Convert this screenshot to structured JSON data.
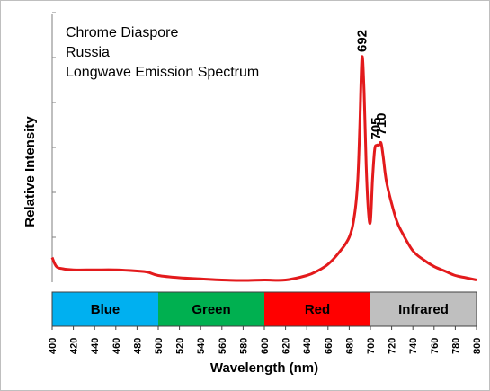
{
  "chart_data": {
    "type": "line",
    "annotations": [
      "Chrome Diaspore",
      "Russia",
      "Longwave Emission Spectrum"
    ],
    "xlabel": "Wavelength (nm)",
    "ylabel": "Relative Intensity",
    "xlim": [
      400,
      800
    ],
    "ylim": [
      0,
      100
    ],
    "x_ticks": [
      "400",
      "420",
      "440",
      "460",
      "480",
      "500",
      "520",
      "540",
      "560",
      "580",
      "600",
      "620",
      "640",
      "660",
      "680",
      "700",
      "720",
      "740",
      "760",
      "780",
      "800"
    ],
    "y_gridlines": false,
    "peak_labels": [
      {
        "text": "692",
        "x": 692,
        "y": 100
      },
      {
        "text": "705",
        "x": 705,
        "y": 61
      },
      {
        "text": "710",
        "x": 710,
        "y": 63
      }
    ],
    "color_bands": [
      {
        "label": "Blue",
        "from": 400,
        "to": 500,
        "color": "#00b0f0"
      },
      {
        "label": "Green",
        "from": 500,
        "to": 600,
        "color": "#00b050"
      },
      {
        "label": "Red",
        "from": 600,
        "to": 700,
        "color": "#ff0000"
      },
      {
        "label": "Infrared",
        "from": 700,
        "to": 800,
        "color": "#bfbfbf"
      }
    ],
    "series": [
      {
        "color": "#e31a1c",
        "x": [
          400,
          404,
          410,
          420,
          440,
          460,
          480,
          490,
          500,
          520,
          540,
          560,
          580,
          600,
          620,
          640,
          650,
          660,
          670,
          680,
          685,
          688,
          690,
          692,
          694,
          696,
          698,
          700,
          702,
          704,
          706,
          708,
          710,
          712,
          715,
          720,
          725,
          730,
          740,
          750,
          760,
          770,
          780,
          790,
          800
        ],
        "y": [
          11,
          7,
          6,
          5.5,
          5.5,
          5.5,
          5,
          4.5,
          3,
          2,
          1.5,
          1,
          0.8,
          1,
          1,
          3,
          5,
          8,
          13,
          20,
          30,
          45,
          70,
          100,
          85,
          52,
          32,
          27,
          46,
          59,
          61,
          61,
          62,
          56,
          45,
          35,
          27,
          22,
          14,
          10,
          7,
          5,
          3,
          2,
          1
        ]
      }
    ]
  }
}
